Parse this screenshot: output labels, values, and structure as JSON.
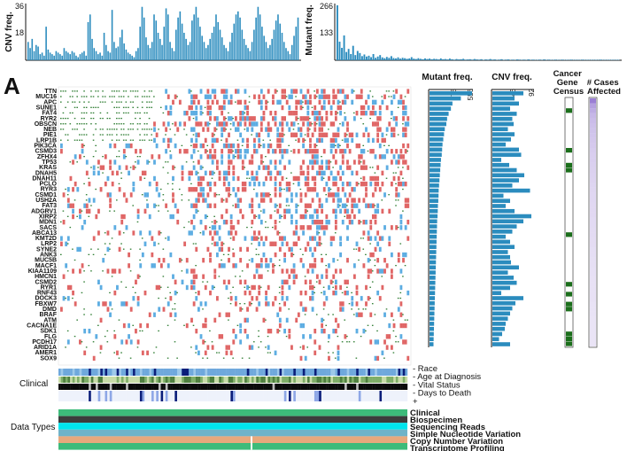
{
  "panel_label": "A",
  "chart_data": {
    "type": "oncoprint",
    "top_cnv_histogram": {
      "ylabel": "CNV freq.",
      "yticks": [
        36,
        18
      ],
      "ylim": [
        0,
        36
      ],
      "values": [
        12,
        8,
        14,
        6,
        10,
        9,
        4,
        5,
        3,
        22,
        7,
        5,
        4,
        3,
        6,
        5,
        4,
        3,
        8,
        6,
        5,
        4,
        6,
        5,
        3,
        2,
        4,
        5,
        6,
        3,
        25,
        30,
        14,
        8,
        6,
        4,
        5,
        3,
        18,
        10,
        6,
        5,
        33,
        12,
        8,
        9,
        15,
        20,
        11,
        7,
        5,
        4,
        3,
        2,
        6,
        8,
        22,
        35,
        28,
        15,
        10,
        8,
        12,
        30,
        26,
        18,
        14,
        10,
        22,
        34,
        30,
        12,
        8,
        6,
        20,
        28,
        32,
        24,
        18,
        14,
        10,
        12,
        26,
        30,
        35,
        28,
        22,
        16,
        12,
        8,
        10,
        14,
        18,
        22,
        30,
        25,
        20,
        15,
        10,
        8,
        6,
        12,
        18,
        24,
        30,
        32,
        28,
        20,
        14,
        10,
        8,
        6,
        12,
        20,
        28,
        35,
        30,
        22,
        16,
        12,
        8,
        10,
        14,
        20,
        26,
        30,
        24,
        18,
        12,
        8,
        6,
        4,
        10,
        16,
        22,
        28
      ]
    },
    "top_mutant_histogram": {
      "ylabel": "Mutant freq.",
      "yticks": [
        266,
        133
      ],
      "ylim": [
        0,
        266
      ],
      "values": [
        266,
        90,
        60,
        120,
        40,
        55,
        30,
        70,
        25,
        45,
        35,
        20,
        28,
        18,
        22,
        15,
        30,
        12,
        18,
        25,
        14,
        10,
        16,
        12,
        20,
        11,
        9,
        14,
        8,
        12,
        10,
        7,
        9,
        15,
        8,
        6,
        10,
        7,
        5,
        9,
        6,
        8,
        5,
        7,
        6,
        4,
        9,
        5,
        6,
        4,
        8,
        5,
        3,
        6,
        4,
        5,
        7,
        3,
        4,
        5,
        3,
        6,
        4,
        3,
        5,
        2,
        4,
        3,
        6,
        3,
        4,
        2,
        3,
        5,
        2,
        3,
        4,
        2,
        3,
        2,
        4,
        3,
        2,
        3,
        2,
        4,
        2,
        3,
        2,
        2,
        3,
        2,
        4,
        2,
        3,
        2,
        2,
        3,
        2,
        2,
        3,
        2,
        2,
        2,
        3,
        2,
        2,
        2,
        2,
        3,
        2,
        2,
        2,
        2,
        2,
        2,
        2,
        3,
        2,
        2,
        2,
        2,
        2,
        2,
        2,
        2
      ]
    },
    "genes": [
      "TTN",
      "MUC16",
      "APC",
      "SUNE1",
      "FAT4",
      "RYR2",
      "OBSCN",
      "NEB",
      "PIE1",
      "LRP1B",
      "PIK3CA",
      "CSMD3",
      "ZFHX4",
      "TP53",
      "KRAS",
      "DNAH5",
      "DNAH11",
      "PCLO",
      "RYR3",
      "CSMD1",
      "USH2A",
      "FAT3",
      "ADGRV1",
      "XIRP2",
      "MDN1",
      "SACS",
      "ABCA13",
      "KMT2D",
      "LRP2",
      "SYNE2",
      "ANK3",
      "MUC5B",
      "MACF1",
      "KIAA1109",
      "HMCN1",
      "CSMD2",
      "RYR1",
      "RNF43",
      "DOCK3",
      "FBXW7",
      "DMD",
      "BRAF",
      "ATM",
      "CACNA1E",
      "SDK1",
      "FLG",
      "PCDH17",
      "ARID1A",
      "AMER1",
      "SOX9"
    ],
    "right_mutant_freq": {
      "title": "Mutant freq.",
      "ticks": [
        278,
        556
      ],
      "xlim": [
        0,
        556
      ],
      "values": [
        556,
        410,
        300,
        280,
        250,
        230,
        220,
        200,
        190,
        180,
        170,
        165,
        160,
        150,
        145,
        140,
        135,
        130,
        125,
        120,
        118,
        115,
        110,
        108,
        105,
        100,
        98,
        96,
        94,
        92,
        90,
        88,
        86,
        84,
        82,
        80,
        78,
        76,
        74,
        72,
        70,
        68,
        66,
        64,
        62,
        60,
        58,
        56,
        54,
        52
      ]
    },
    "right_cnv_freq": {
      "title": "CNV freq.",
      "ticks": [
        46,
        92
      ],
      "xlim": [
        0,
        92
      ],
      "values": [
        70,
        50,
        60,
        40,
        55,
        45,
        48,
        35,
        50,
        42,
        30,
        60,
        65,
        20,
        38,
        55,
        72,
        60,
        45,
        85,
        25,
        40,
        30,
        50,
        88,
        70,
        55,
        45,
        30,
        40,
        50,
        35,
        40,
        42,
        60,
        35,
        48,
        55,
        40,
        20,
        70,
        52,
        45,
        40,
        35,
        30,
        28,
        22,
        15,
        40
      ]
    },
    "cancer_gene_census": {
      "title": "Cancer Gene Census",
      "flags": [
        0,
        0,
        1,
        0,
        0,
        0,
        0,
        0,
        0,
        0,
        1,
        0,
        0,
        1,
        1,
        0,
        0,
        0,
        0,
        0,
        0,
        0,
        0,
        0,
        0,
        0,
        0,
        1,
        0,
        0,
        0,
        0,
        0,
        0,
        0,
        0,
        0,
        1,
        0,
        1,
        0,
        1,
        1,
        0,
        0,
        0,
        0,
        1,
        1,
        1
      ]
    },
    "cases_affected": {
      "title": "# Cases Affected",
      "values": [
        1.0,
        0.7,
        0.6,
        0.5,
        0.45,
        0.42,
        0.4,
        0.38,
        0.36,
        0.34,
        0.32,
        0.3,
        0.29,
        0.28,
        0.27,
        0.26,
        0.25,
        0.24,
        0.23,
        0.22,
        0.22,
        0.21,
        0.2,
        0.2,
        0.19,
        0.19,
        0.18,
        0.18,
        0.17,
        0.17,
        0.16,
        0.16,
        0.15,
        0.15,
        0.14,
        0.14,
        0.13,
        0.13,
        0.12,
        0.12,
        0.12,
        0.11,
        0.11,
        0.11,
        0.1,
        0.1,
        0.1,
        0.1,
        0.1,
        0.1
      ]
    },
    "clinical": {
      "label": "Clinical",
      "tracks": [
        "Race",
        "Age at Diagnosis",
        "Vital Status",
        "Days to Death"
      ],
      "plus": "+"
    },
    "data_types": {
      "label": "Data Types",
      "tracks": [
        "Clinical",
        "Biospecimen",
        "Sequencing Reads",
        "Simple Nucleotide Variation",
        "Copy Number Variation",
        "Transcriptome Profiling"
      ]
    }
  },
  "colors": {
    "bar_blue": "#2b8cbe",
    "gain_red": "#e06666",
    "loss_blue": "#5dade2",
    "mut_green": "#2e7d32",
    "cgc_green": "#1b6e1b",
    "case_purple": "#9a7fd4",
    "clin_navy": "#0b1e7a",
    "dt_dark": "#3c3c3c",
    "dt_cyan": "#00e5ee",
    "dt_tan": "#e8a87c",
    "dt_green": "#3dbb7a"
  }
}
